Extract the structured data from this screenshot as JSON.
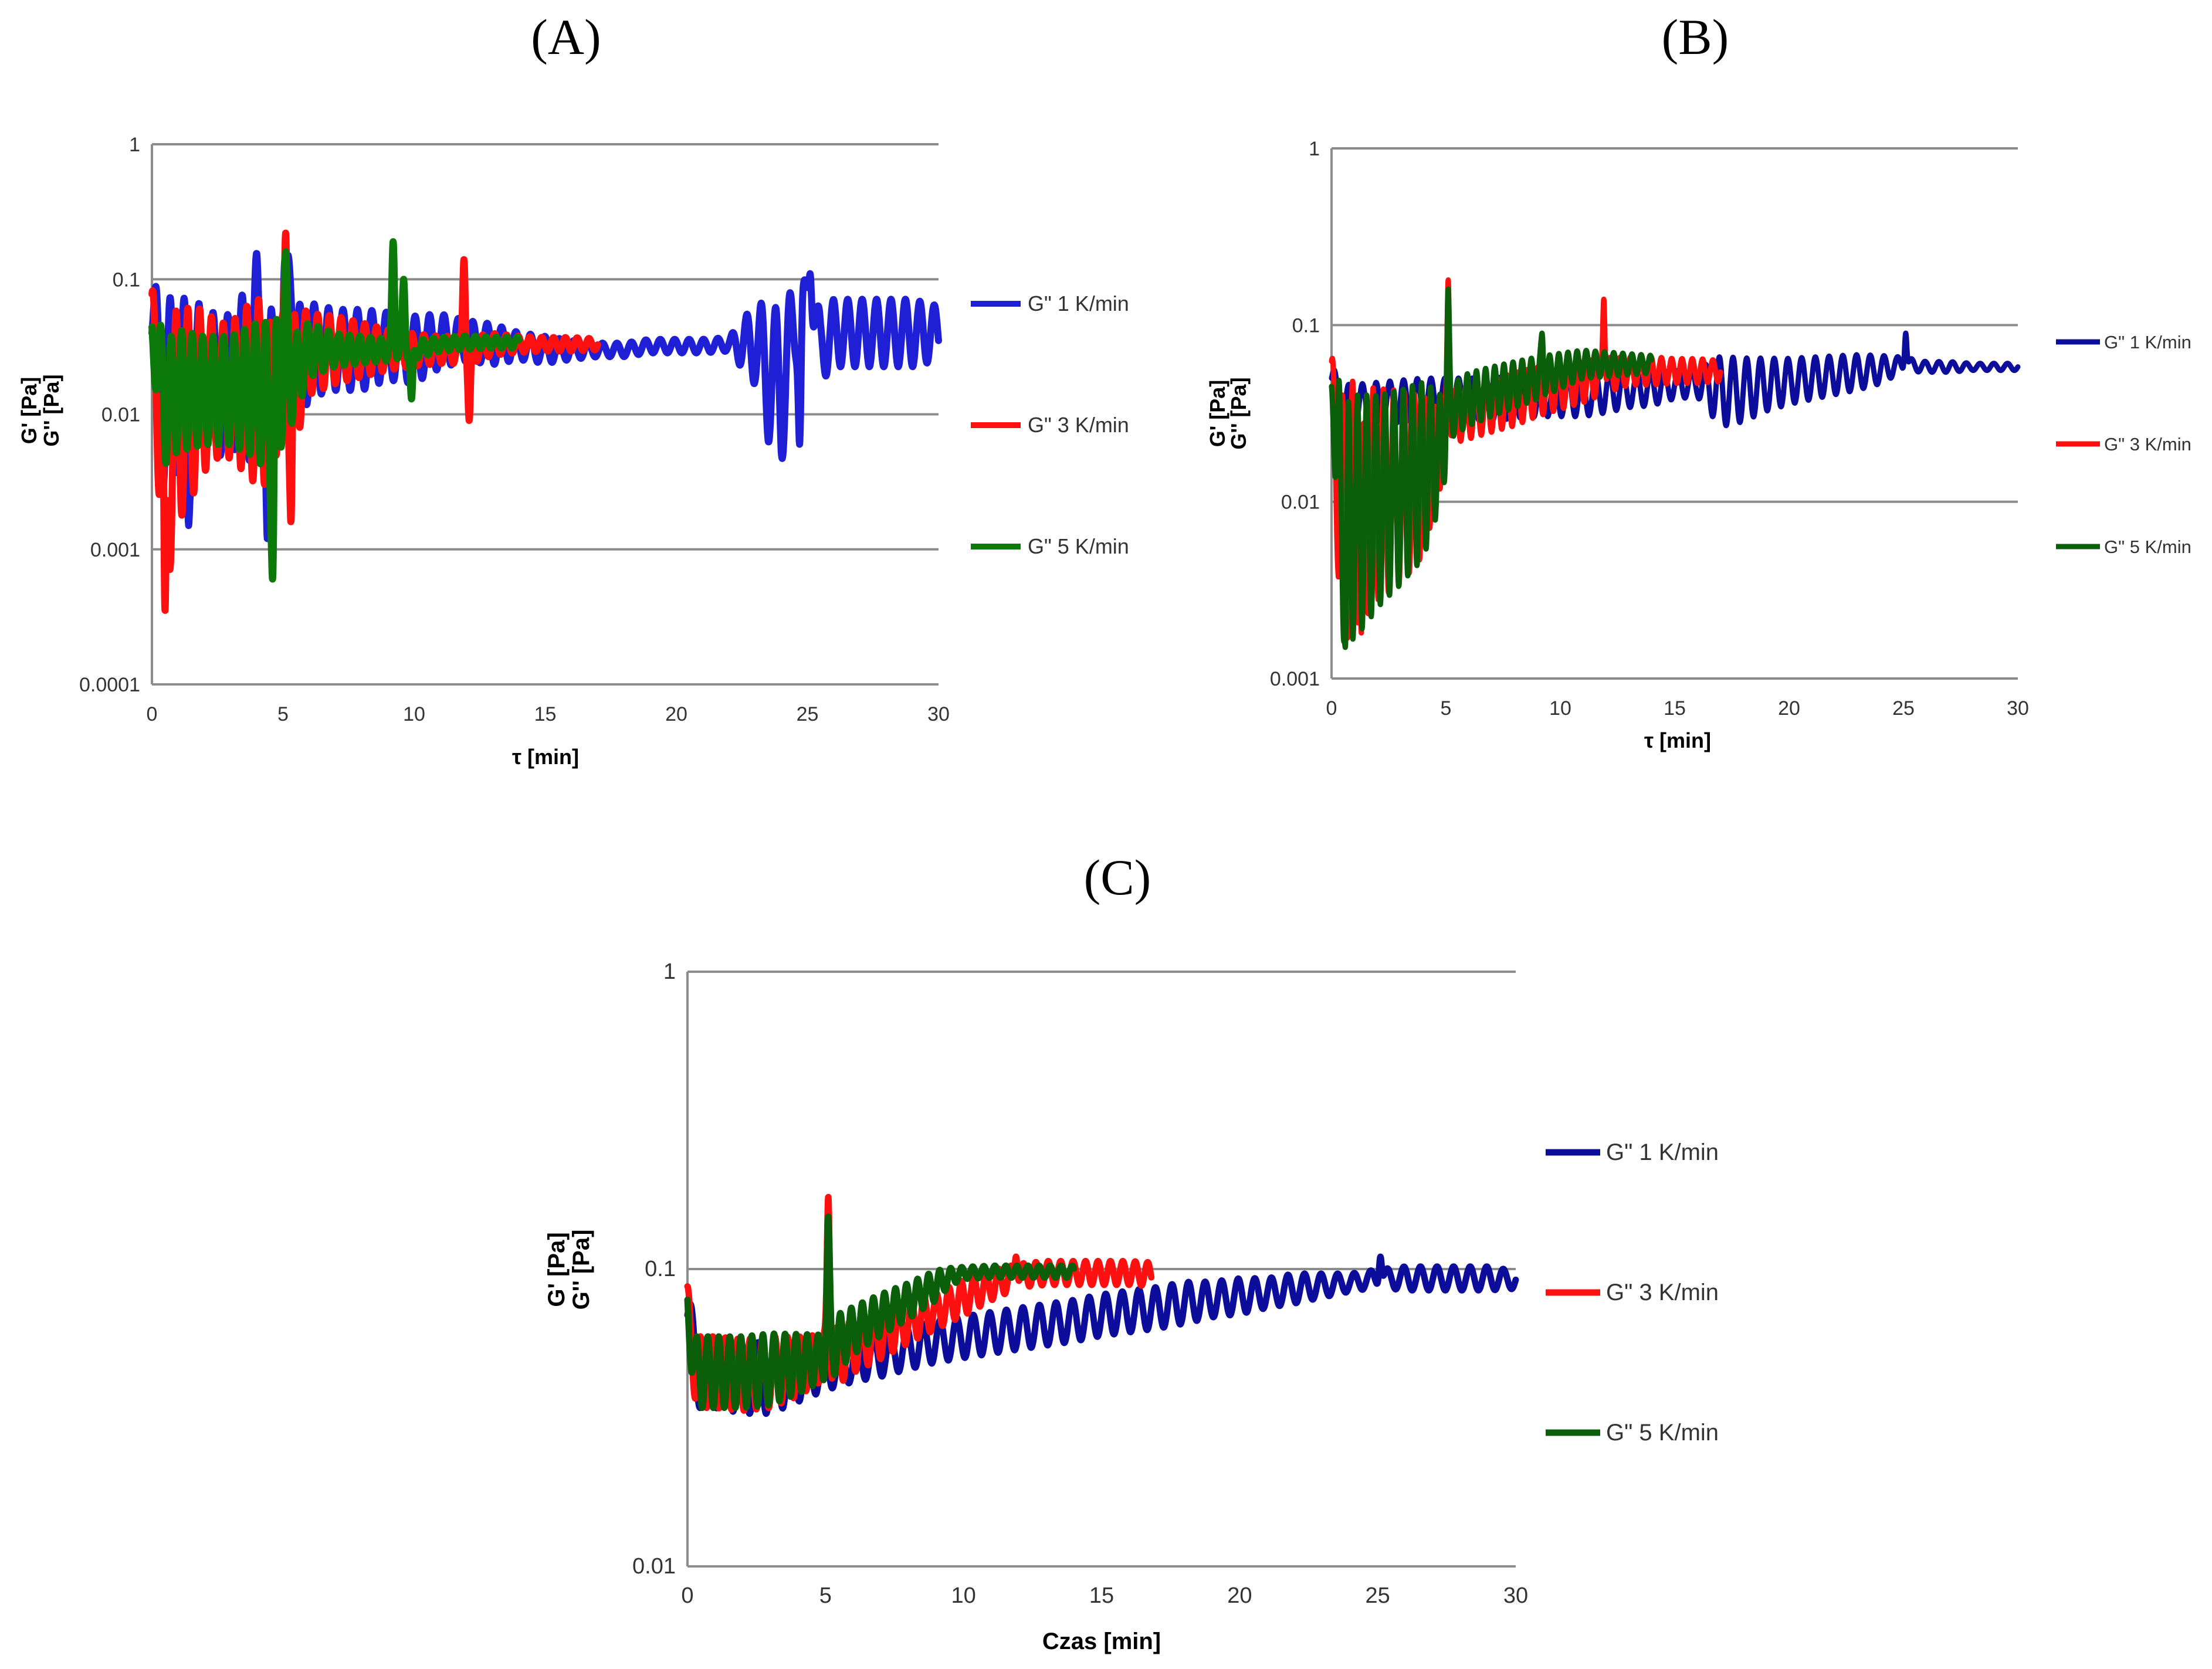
{
  "figure": {
    "panels": [
      "(A)",
      "(B)",
      "(C)"
    ]
  },
  "colors": {
    "blue_a": "#1f1fd6",
    "blue_bc": "#0d0d9c",
    "red": "#ff1010",
    "green": "#0b7a0b",
    "grid": "#8c8c8c"
  },
  "chart_data": [
    {
      "id": "A",
      "panel_label": "(A)",
      "type": "line",
      "yscale": "log",
      "xlabel": "τ [min]",
      "ylabel_1": "G' [Pa]",
      "ylabel_2": "G'' [Pa]",
      "xlim": [
        0,
        30
      ],
      "ylim": [
        0.0001,
        1
      ],
      "xticks": [
        "0",
        "5",
        "10",
        "15",
        "20",
        "25",
        "30"
      ],
      "yticks": [
        "0.0001",
        "0.001",
        "0.01",
        "0.1",
        "1"
      ],
      "grid": true,
      "legend_position": "right",
      "series": [
        {
          "name": "G\" 1 K/min",
          "color": "#1f1fd6",
          "x": [
            0,
            0.3,
            0.6,
            1.0,
            1.5,
            2.0,
            2.5,
            3.0,
            3.5,
            4.0,
            4.5,
            5.0,
            5.2,
            5.5,
            6,
            7,
            8,
            9,
            10,
            11,
            12,
            13,
            14,
            15,
            16,
            17,
            18,
            19,
            20,
            21,
            22,
            23,
            23.5,
            24,
            24.5,
            25,
            25.5,
            26,
            27,
            28,
            29,
            30
          ],
          "y": [
            0.04,
            0.02,
            0.01,
            0.02,
            0.012,
            0.02,
            0.015,
            0.018,
            0.02,
            0.025,
            0.02,
            0.03,
            0.15,
            0.02,
            0.03,
            0.03,
            0.03,
            0.032,
            0.03,
            0.035,
            0.035,
            0.033,
            0.032,
            0.03,
            0.03,
            0.03,
            0.03,
            0.032,
            0.032,
            0.032,
            0.033,
            0.033,
            0.02,
            0.015,
            0.04,
            0.08,
            0.03,
            0.04,
            0.04,
            0.04,
            0.04,
            0.04
          ],
          "osc_amp": [
            0.25,
            0.7,
            0.8,
            0.7,
            0.6,
            0.6,
            0.5,
            0.5,
            0.6,
            0.8,
            0.5,
            0.3,
            0,
            0.5,
            0.35,
            0.3,
            0.3,
            0.25,
            0.25,
            0.2,
            0.15,
            0.15,
            0.1,
            0.1,
            0.07,
            0.05,
            0.05,
            0.05,
            0.05,
            0.05,
            0.05,
            0.3,
            0.5,
            0.6,
            0.3,
            0.1,
            0.25,
            0.25,
            0.25,
            0.25,
            0.25,
            0.2
          ],
          "period": 0.55,
          "end_x": 30,
          "spikes": [
            [
              5.1,
              0.15
            ],
            [
              25.1,
              0.11
            ],
            [
              24.7,
              0.006
            ],
            [
              1.4,
              0.0015
            ],
            [
              4.4,
              0.0012
            ]
          ]
        },
        {
          "name": "G\" 3 K/min",
          "color": "#ff1010",
          "x": [
            0,
            0.3,
            0.6,
            1.0,
            1.5,
            2.0,
            2.5,
            3.0,
            3.5,
            4.0,
            4.5,
            5.0,
            5.5,
            6,
            7,
            8,
            9,
            10,
            11,
            11.9,
            12.2,
            13,
            14,
            15,
            16,
            17
          ],
          "y": [
            0.04,
            0.01,
            0.004,
            0.01,
            0.012,
            0.015,
            0.015,
            0.015,
            0.015,
            0.015,
            0.012,
            0.02,
            0.02,
            0.028,
            0.03,
            0.03,
            0.03,
            0.03,
            0.03,
            0.03,
            0.03,
            0.033,
            0.033,
            0.033,
            0.033,
            0.033
          ],
          "osc_amp": [
            0.3,
            0.8,
            0.9,
            0.8,
            0.7,
            0.6,
            0.5,
            0.5,
            0.6,
            0.7,
            0.6,
            0.4,
            0.5,
            0.3,
            0.25,
            0.2,
            0.15,
            0.12,
            0.1,
            0.1,
            0.1,
            0.08,
            0.06,
            0.05,
            0.05,
            0.04
          ],
          "period": 0.45,
          "end_x": 17,
          "spikes": [
            [
              5.1,
              0.22
            ],
            [
              11.9,
              0.14
            ],
            [
              12.1,
              0.009
            ],
            [
              0.5,
              0.00035
            ],
            [
              5.3,
              0.0016
            ]
          ]
        },
        {
          "name": "G\" 5 K/min",
          "color": "#0b7a0b",
          "x": [
            0,
            0.5,
            1.0,
            2.0,
            3.0,
            4.0,
            4.6,
            5.0,
            5.5,
            6,
            7,
            8,
            9,
            10,
            11,
            12,
            13,
            14
          ],
          "y": [
            0.035,
            0.012,
            0.015,
            0.015,
            0.015,
            0.015,
            0.012,
            0.02,
            0.02,
            0.03,
            0.03,
            0.03,
            0.03,
            0.03,
            0.033,
            0.034,
            0.034,
            0.034
          ],
          "osc_amp": [
            0.2,
            0.45,
            0.45,
            0.4,
            0.4,
            0.5,
            0.6,
            0.5,
            0.3,
            0.2,
            0.12,
            0.1,
            0.08,
            0.07,
            0.05,
            0.05,
            0.04,
            0.04
          ],
          "period": 0.4,
          "end_x": 14,
          "spikes": [
            [
              5.1,
              0.16
            ],
            [
              9.2,
              0.19
            ],
            [
              9.6,
              0.1
            ],
            [
              4.6,
              0.0006
            ],
            [
              9.9,
              0.013
            ]
          ]
        }
      ]
    },
    {
      "id": "B",
      "panel_label": "(B)",
      "type": "line",
      "yscale": "log",
      "xlabel": "τ [min]",
      "ylabel_1": "G' [Pa]",
      "ylabel_2": "G'' [Pa]",
      "xlim": [
        0,
        30
      ],
      "ylim": [
        0.001,
        1
      ],
      "xticks": [
        "0",
        "5",
        "10",
        "15",
        "20",
        "25",
        "30"
      ],
      "yticks": [
        "0.001",
        "0.01",
        "0.1",
        "1"
      ],
      "grid": true,
      "legend_position": "right",
      "series": [
        {
          "name": "G\" 1 K/min",
          "color": "#0d0d9c",
          "x": [
            0,
            0.3,
            1,
            2,
            3,
            4,
            5,
            6,
            7,
            8,
            9,
            10,
            11,
            12,
            13,
            14,
            15,
            16,
            17,
            18,
            19,
            20,
            21,
            22,
            23,
            24,
            25,
            26,
            27,
            28,
            29,
            30
          ],
          "y": [
            0.05,
            0.035,
            0.035,
            0.036,
            0.037,
            0.038,
            0.038,
            0.038,
            0.038,
            0.039,
            0.04,
            0.04,
            0.04,
            0.042,
            0.043,
            0.044,
            0.046,
            0.047,
            0.042,
            0.043,
            0.046,
            0.048,
            0.05,
            0.052,
            0.054,
            0.056,
            0.06,
            0.058,
            0.058,
            0.058,
            0.058,
            0.058
          ],
          "osc_amp": [
            0.1,
            0.12,
            0.12,
            0.12,
            0.12,
            0.12,
            0.12,
            0.12,
            0.12,
            0.12,
            0.12,
            0.12,
            0.12,
            0.12,
            0.1,
            0.1,
            0.08,
            0.08,
            0.2,
            0.18,
            0.15,
            0.13,
            0.12,
            0.11,
            0.1,
            0.08,
            0.04,
            0.03,
            0.03,
            0.02,
            0.02,
            0.02
          ],
          "period": 0.6,
          "end_x": 30,
          "spikes": [
            [
              25.1,
              0.09
            ]
          ]
        },
        {
          "name": "G\" 3 K/min",
          "color": "#ff1010",
          "x": [
            0,
            0.3,
            0.6,
            1,
            1.5,
            2,
            3,
            4,
            4.8,
            5.2,
            6,
            7,
            8,
            9,
            10,
            11,
            12,
            13,
            14,
            15,
            16,
            17
          ],
          "y": [
            0.05,
            0.01,
            0.008,
            0.01,
            0.01,
            0.011,
            0.012,
            0.014,
            0.02,
            0.03,
            0.032,
            0.035,
            0.038,
            0.042,
            0.045,
            0.048,
            0.052,
            0.055,
            0.055,
            0.055,
            0.055,
            0.055
          ],
          "osc_amp": [
            0.1,
            0.6,
            0.7,
            0.7,
            0.65,
            0.6,
            0.55,
            0.45,
            0.2,
            0.15,
            0.15,
            0.15,
            0.15,
            0.14,
            0.13,
            0.12,
            0.1,
            0.08,
            0.08,
            0.07,
            0.07,
            0.06
          ],
          "period": 0.45,
          "end_x": 17,
          "spikes": [
            [
              5.1,
              0.18
            ],
            [
              11.9,
              0.14
            ],
            [
              1.3,
              0.0018
            ]
          ]
        },
        {
          "name": "G\" 5 K/min",
          "color": "#0b5f0b",
          "x": [
            0,
            0.4,
            0.8,
            1.5,
            2,
            3,
            4,
            4.8,
            5.3,
            6,
            7,
            8,
            9,
            10,
            11,
            12,
            13,
            14
          ],
          "y": [
            0.04,
            0.008,
            0.008,
            0.009,
            0.01,
            0.012,
            0.015,
            0.02,
            0.033,
            0.038,
            0.042,
            0.046,
            0.05,
            0.055,
            0.06,
            0.06,
            0.06,
            0.06
          ],
          "osc_amp": [
            0.1,
            0.65,
            0.7,
            0.65,
            0.6,
            0.55,
            0.5,
            0.3,
            0.15,
            0.15,
            0.14,
            0.13,
            0.12,
            0.1,
            0.08,
            0.07,
            0.06,
            0.05
          ],
          "period": 0.4,
          "end_x": 14,
          "spikes": [
            [
              5.1,
              0.16
            ],
            [
              9.2,
              0.09
            ],
            [
              0.6,
              0.0015
            ]
          ]
        }
      ]
    },
    {
      "id": "C",
      "panel_label": "(C)",
      "type": "line",
      "yscale": "log",
      "xlabel": "Czas [min]",
      "ylabel_1": "G' [Pa]",
      "ylabel_2": "G'' [Pa]",
      "xlim": [
        0,
        30
      ],
      "ylim": [
        0.01,
        1
      ],
      "xticks": [
        "0",
        "5",
        "10",
        "15",
        "20",
        "25",
        "30"
      ],
      "yticks": [
        "0.01",
        "0.1",
        "1"
      ],
      "grid": true,
      "legend_position": "right",
      "series": [
        {
          "name": "G\" 1 K/min",
          "color": "#0d0d9c",
          "x": [
            0,
            0.3,
            1,
            2,
            3,
            4,
            5,
            6,
            7,
            8,
            9,
            10,
            11,
            12,
            13,
            14,
            15,
            16,
            17,
            18,
            19,
            20,
            21,
            22,
            23,
            24,
            25,
            26,
            27,
            28,
            29,
            30
          ],
          "y": [
            0.07,
            0.045,
            0.045,
            0.043,
            0.043,
            0.045,
            0.047,
            0.049,
            0.051,
            0.054,
            0.057,
            0.059,
            0.061,
            0.063,
            0.065,
            0.067,
            0.07,
            0.072,
            0.074,
            0.077,
            0.079,
            0.081,
            0.083,
            0.086,
            0.088,
            0.09,
            0.093,
            0.093,
            0.093,
            0.093,
            0.093,
            0.092
          ],
          "osc_amp": [
            0.1,
            0.12,
            0.12,
            0.12,
            0.12,
            0.1,
            0.08,
            0.07,
            0.07,
            0.07,
            0.07,
            0.07,
            0.07,
            0.07,
            0.07,
            0.07,
            0.07,
            0.07,
            0.07,
            0.07,
            0.06,
            0.06,
            0.05,
            0.05,
            0.04,
            0.03,
            0.03,
            0.04,
            0.04,
            0.04,
            0.04,
            0.03
          ],
          "period": 0.6,
          "end_x": 30,
          "spikes": [
            [
              25.1,
              0.11
            ]
          ]
        },
        {
          "name": "G\" 3 K/min",
          "color": "#ff1010",
          "x": [
            0,
            0.3,
            1,
            2,
            3,
            4,
            4.8,
            5.3,
            6,
            7,
            8,
            9,
            10,
            11,
            12,
            13,
            14,
            15,
            16,
            16.8
          ],
          "y": [
            0.07,
            0.045,
            0.045,
            0.044,
            0.045,
            0.047,
            0.05,
            0.05,
            0.055,
            0.06,
            0.066,
            0.072,
            0.08,
            0.088,
            0.095,
            0.097,
            0.097,
            0.097,
            0.097,
            0.096
          ],
          "osc_amp": [
            0.1,
            0.12,
            0.12,
            0.12,
            0.12,
            0.1,
            0.08,
            0.1,
            0.09,
            0.08,
            0.07,
            0.06,
            0.06,
            0.05,
            0.04,
            0.04,
            0.04,
            0.04,
            0.04,
            0.04
          ],
          "period": 0.45,
          "end_x": 16.8,
          "spikes": [
            [
              5.1,
              0.175
            ],
            [
              11.9,
              0.11
            ]
          ]
        },
        {
          "name": "G\" 5 K/min",
          "color": "#0b5f0b",
          "x": [
            0,
            0.3,
            1,
            2,
            3,
            4,
            4.8,
            5.3,
            6,
            7,
            8,
            9,
            9.5,
            10,
            11,
            12,
            13,
            14
          ],
          "y": [
            0.07,
            0.045,
            0.045,
            0.045,
            0.046,
            0.048,
            0.05,
            0.055,
            0.062,
            0.07,
            0.078,
            0.088,
            0.094,
            0.097,
            0.098,
            0.098,
            0.098,
            0.098
          ],
          "osc_amp": [
            0.1,
            0.12,
            0.12,
            0.12,
            0.12,
            0.1,
            0.08,
            0.1,
            0.08,
            0.07,
            0.06,
            0.05,
            0.03,
            0.02,
            0.02,
            0.02,
            0.02,
            0.02
          ],
          "period": 0.4,
          "end_x": 14,
          "spikes": [
            [
              5.1,
              0.15
            ]
          ]
        }
      ]
    }
  ]
}
